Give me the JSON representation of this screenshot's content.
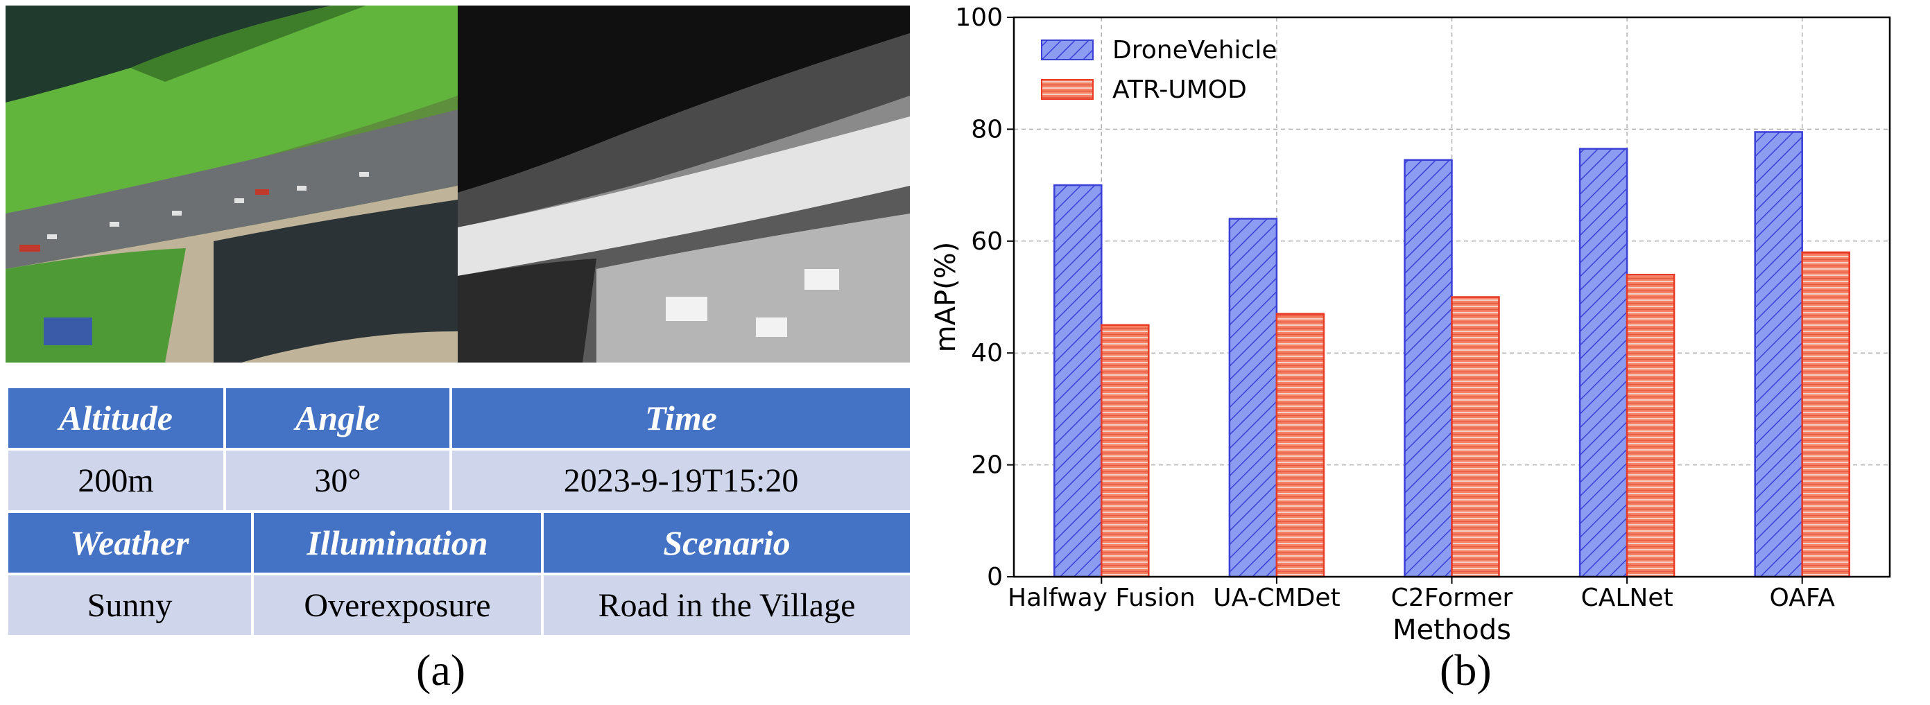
{
  "captions": {
    "a": "(a)",
    "b": "(b)"
  },
  "scene_table": {
    "row1_headers": [
      "Altitude",
      "Angle",
      "Time"
    ],
    "row1_values": [
      "200m",
      "30°",
      "2023-9-19T15:20"
    ],
    "row2_headers": [
      "Weather",
      "Illumination",
      "Scenario"
    ],
    "row2_values": [
      "Sunny",
      "Overexposure",
      "Road in the Village"
    ],
    "colors": {
      "header_bg": "#4472c4",
      "value_bg": "#cfd5ea"
    }
  },
  "chart_data": {
    "type": "bar",
    "categories": [
      "Halfway Fusion",
      "UA-CMDet",
      "C2Former",
      "CALNet",
      "OAFA"
    ],
    "series": [
      {
        "name": "DroneVehicle",
        "values": [
          70.0,
          64.0,
          74.5,
          76.5,
          79.5
        ],
        "color": "#8c9cf0",
        "edge": "#3a3fd8",
        "hatch": "diagonal"
      },
      {
        "name": "ATR-UMOD",
        "values": [
          45.0,
          47.0,
          50.0,
          54.0,
          58.0
        ],
        "color": "#f58466",
        "edge": "#e83a24",
        "hatch": "horizontal"
      }
    ],
    "title": "",
    "xlabel": "Methods",
    "ylabel": "mAP(%)",
    "ylim": [
      0,
      100
    ],
    "yticks": [
      0,
      20,
      40,
      60,
      80,
      100
    ],
    "grid": true,
    "legend_position": "top-left"
  }
}
